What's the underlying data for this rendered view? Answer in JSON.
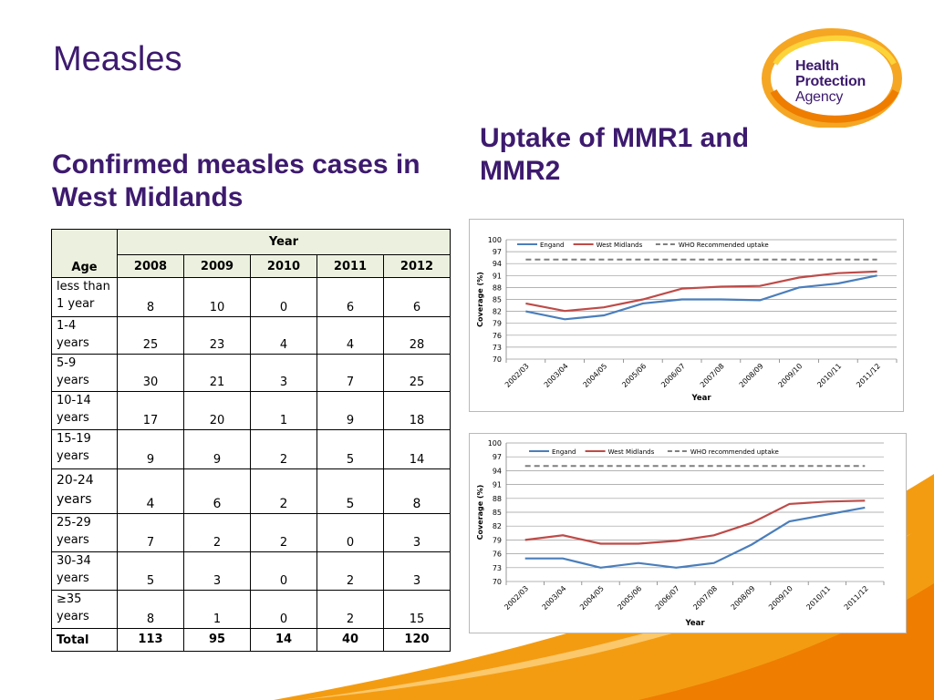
{
  "slide": {
    "title": "Measles",
    "table_heading": "Confirmed measles cases in West Midlands",
    "chart_heading": "Uptake of MMR1 and MMR2"
  },
  "logo": {
    "lines": [
      "Health",
      "Protection",
      "Agency"
    ]
  },
  "cases_table": {
    "age_header": "Age",
    "year_header": "Year",
    "years": [
      "2008",
      "2009",
      "2010",
      "2011",
      "2012"
    ],
    "rows": [
      {
        "age": [
          "less than",
          "1 year"
        ],
        "values": [
          "8",
          "10",
          "0",
          "6",
          "6"
        ]
      },
      {
        "age": [
          "1-4 years"
        ],
        "values": [
          "25",
          "23",
          "4",
          "4",
          "28"
        ]
      },
      {
        "age": [
          "5-9 years"
        ],
        "values": [
          "30",
          "21",
          "3",
          "7",
          "25"
        ]
      },
      {
        "age": [
          "10-14",
          "years"
        ],
        "values": [
          "17",
          "20",
          "1",
          "9",
          "18"
        ]
      },
      {
        "age": [
          "15-19",
          "years"
        ],
        "values": [
          "9",
          "9",
          "2",
          "5",
          "14"
        ]
      },
      {
        "age": [
          "20-24",
          "years"
        ],
        "values": [
          "4",
          "6",
          "2",
          "5",
          "8"
        ]
      },
      {
        "age": [
          "25-29",
          "years"
        ],
        "values": [
          "7",
          "2",
          "2",
          "0",
          "3"
        ]
      },
      {
        "age": [
          "30-34",
          "years"
        ],
        "values": [
          "5",
          "3",
          "0",
          "2",
          "3"
        ]
      },
      {
        "age": [
          "≥35",
          "years"
        ],
        "values": [
          "8",
          "1",
          "0",
          "2",
          "15"
        ]
      }
    ],
    "total": {
      "label": "Total",
      "values": [
        "113",
        "95",
        "14",
        "40",
        "120"
      ]
    }
  },
  "chart_data": [
    {
      "type": "line",
      "categories": [
        "2002/03",
        "2003/04",
        "2004/05",
        "2005/06",
        "2006/07",
        "2007/08",
        "2008/09",
        "2009/10",
        "2010/11",
        "2011/12"
      ],
      "series": [
        {
          "name": "Engand",
          "color": "#4a7ebb",
          "dashed": false,
          "values": [
            82,
            80,
            81,
            84,
            85,
            85,
            84.8,
            88,
            89,
            91
          ]
        },
        {
          "name": "West Midlands",
          "color": "#be4b48",
          "dashed": false,
          "values": [
            84,
            82.1,
            83,
            85,
            87.7,
            88.2,
            88.4,
            90.5,
            91.6,
            92
          ]
        },
        {
          "name": "WHO Recommended uptake",
          "color": "#7f7f7f",
          "dashed": true,
          "values": [
            95,
            95,
            95,
            95,
            95,
            95,
            95,
            95,
            95,
            95
          ]
        }
      ],
      "yticks": [
        70,
        73,
        76,
        79,
        82,
        85,
        88,
        91,
        94,
        97,
        100
      ],
      "ylim": [
        70,
        100
      ],
      "xlabel": "Year",
      "ylabel": "Coverage (%)",
      "legend": "top",
      "grid": true
    },
    {
      "type": "line",
      "categories": [
        "2002/03",
        "2003/04",
        "2004/05",
        "2005/06",
        "2006/07",
        "2007/08",
        "2008/09",
        "2009/10",
        "2010/11",
        "2011/12"
      ],
      "series": [
        {
          "name": "Engand",
          "color": "#4a7ebb",
          "dashed": false,
          "values": [
            75,
            75,
            73,
            74,
            73,
            74,
            78,
            83,
            84.5,
            86
          ]
        },
        {
          "name": "West Midlands",
          "color": "#be4b48",
          "dashed": false,
          "values": [
            79,
            80,
            78.2,
            78.2,
            78.8,
            80,
            82.7,
            86.8,
            87.3,
            87.5
          ]
        },
        {
          "name": "WHO recommended uptake",
          "color": "#7f7f7f",
          "dashed": true,
          "values": [
            95,
            95,
            95,
            95,
            95,
            95,
            95,
            95,
            95,
            95
          ]
        }
      ],
      "yticks": [
        70,
        73,
        76,
        79,
        82,
        85,
        88,
        91,
        94,
        97,
        100
      ],
      "ylim": [
        70,
        100
      ],
      "xlabel": "Year",
      "ylabel": "Coverage (%)",
      "legend": "top",
      "grid": true
    }
  ]
}
